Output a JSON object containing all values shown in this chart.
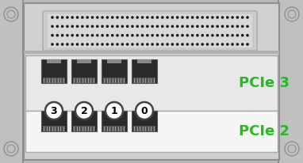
{
  "bg_color": "#b8b8b8",
  "chassis_outer_color": "#c8c8c8",
  "chassis_inner_color": "#d0d0d0",
  "chassis_border_color": "#909090",
  "card3_color": "#e8e8e8",
  "card2_color": "#f5f5f5",
  "connector_bg_color": "#cccccc",
  "connector_border_color": "#aaaaaa",
  "dot_color": "#1a1a1a",
  "port_dark_color": "#2a2a2a",
  "port_notch_color": "#c0c0c0",
  "label_pcie3": "PCIe 3",
  "label_pcie2": "PCIe 2",
  "label_color": "#22bb22",
  "port_numbers": [
    "3",
    "2",
    "1",
    "0"
  ],
  "screw_color": "#c0c0c0",
  "screw_ring_color": "#909090",
  "left_flange_color": "#c0c0c0",
  "right_flange_color": "#c0c0c0"
}
